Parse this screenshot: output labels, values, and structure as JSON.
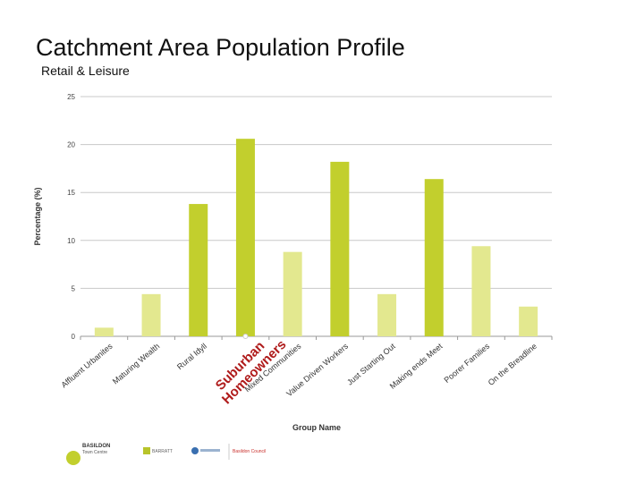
{
  "page": {
    "title": "Catchment Area Population Profile",
    "subtitle": "Retail & Leisure",
    "highlight_label": "Suburban Homeowners",
    "highlight_color": "#b01c1c"
  },
  "footer": {
    "logos": [
      {
        "name": "basildon-logo",
        "lines": [
          "BASILDON",
          "Town Centre"
        ]
      },
      {
        "name": "barratt-logo",
        "lines": [
          "BARRATT"
        ]
      },
      {
        "name": "partner-logo",
        "lines": []
      },
      {
        "name": "basildon-council-logo",
        "lines": [
          "Basildon Council"
        ]
      }
    ]
  },
  "chart_data": {
    "type": "bar",
    "title": "",
    "xlabel": "Group Name",
    "ylabel": "Percentage (%)",
    "ylim": [
      0,
      25
    ],
    "yticks": [
      0,
      5,
      10,
      15,
      20,
      25
    ],
    "grid": true,
    "categories": [
      "Affluent Urbanites",
      "Maturing Wealth",
      "Rural Idyll",
      "Suburban Homeowners",
      "Mixed Communities",
      "Value Driven Workers",
      "Just Starting Out",
      "Making ends Meet",
      "Poorer Families",
      "On the Breadline"
    ],
    "values": [
      0.9,
      4.4,
      13.8,
      20.6,
      8.8,
      18.2,
      4.4,
      16.4,
      9.4,
      3.1
    ],
    "bar_colors": [
      "#e3e88f",
      "#e3e88f",
      "#c2cf2d",
      "#c2cf2d",
      "#e3e88f",
      "#c2cf2d",
      "#e3e88f",
      "#c2cf2d",
      "#e3e88f",
      "#e3e88f"
    ]
  }
}
